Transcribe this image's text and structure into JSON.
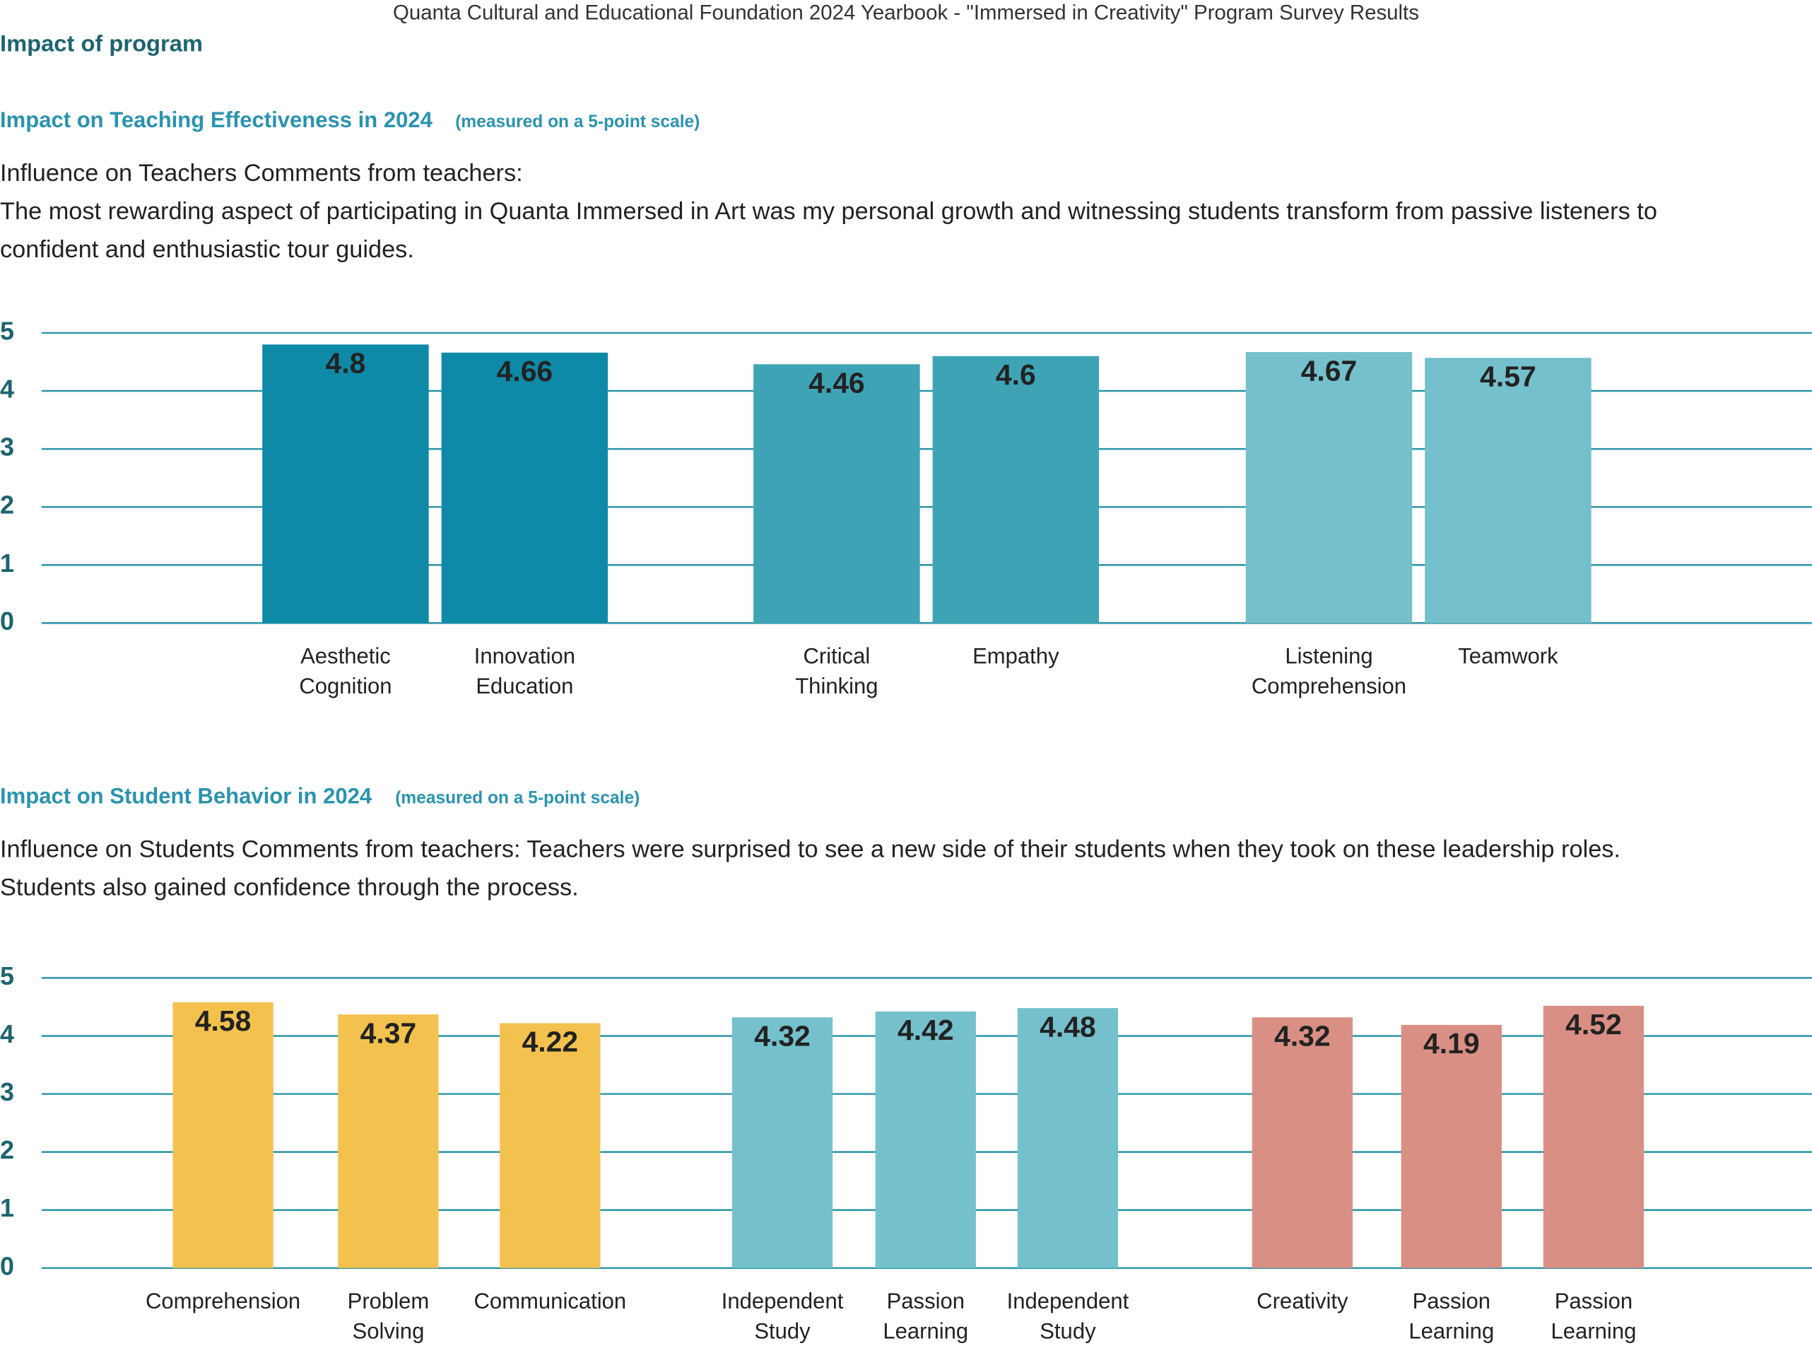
{
  "page_title": "Quanta Cultural and Educational Foundation 2024 Yearbook - \"Immersed in Creativity\" Program Survey Results",
  "section_title": "Impact of program",
  "chart_data": [
    {
      "type": "bar",
      "title": "Impact on Teaching Effectiveness in 2024",
      "subtitle": "(measured on a 5-point scale)",
      "comment": [
        "Influence on Teachers Comments from teachers:",
        "The most rewarding aspect of participating in Quanta Immersed in Art was my personal growth and witnessing students transform from passive listeners to",
        "confident and enthusiastic tour guides."
      ],
      "categories": [
        "Aesthetic\nCognition",
        "Innovation\nEducation",
        "Critical\nThinking",
        "Empathy",
        "Listening\nComprehension",
        "Teamwork"
      ],
      "values": [
        4.8,
        4.66,
        4.46,
        4.6,
        4.67,
        4.57
      ],
      "colors": [
        "#0e8aa8",
        "#0e8aa8",
        "#3ea4b5",
        "#3ea4b5",
        "#74c0cc",
        "#74c0cc"
      ],
      "ylim": [
        0,
        5
      ],
      "yticks": [
        0,
        1,
        2,
        3,
        4,
        5
      ],
      "grid": true
    },
    {
      "type": "bar",
      "title": "Impact on Student Behavior in 2024",
      "subtitle": "(measured on a 5-point scale)",
      "comment": [
        "Influence on Students Comments from teachers: Teachers were surprised to see a new side of their students when they took on these leadership roles.",
        "Students also gained confidence through the process."
      ],
      "categories": [
        "Comprehension",
        "Problem\nSolving",
        "Communication",
        "Independent\nStudy",
        "Passion\nLearning",
        "Independent\nStudy",
        "Creativity",
        "Passion\nLearning",
        "Passion\nLearning"
      ],
      "values": [
        4.58,
        4.37,
        4.22,
        4.32,
        4.42,
        4.48,
        4.32,
        4.19,
        4.52
      ],
      "colors": [
        "#f3c14e",
        "#f3c14e",
        "#f3c14e",
        "#74c0cc",
        "#74c0cc",
        "#74c0cc",
        "#d98f84",
        "#d98f84",
        "#d98f84"
      ],
      "ylim": [
        0,
        5
      ],
      "yticks": [
        0,
        1,
        2,
        3,
        4,
        5
      ],
      "grid": true
    }
  ]
}
